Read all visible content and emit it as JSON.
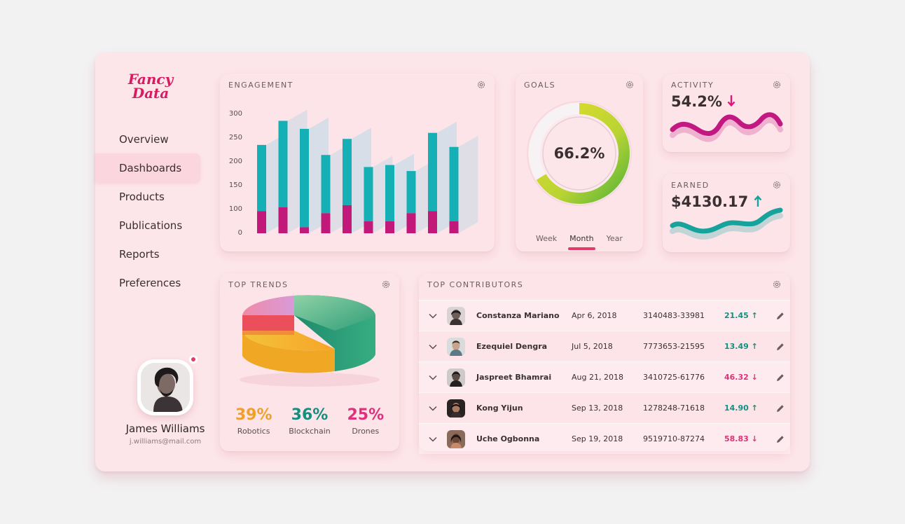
{
  "brand": {
    "line1": "Fancy",
    "line2": "Data",
    "color": "#d81b60"
  },
  "nav": {
    "items": [
      {
        "label": "Overview",
        "active": false
      },
      {
        "label": "Dashboards",
        "active": true
      },
      {
        "label": "Products",
        "active": false
      },
      {
        "label": "Publications",
        "active": false
      },
      {
        "label": "Reports",
        "active": false
      },
      {
        "label": "Preferences",
        "active": false
      }
    ]
  },
  "profile": {
    "name": "James Williams",
    "email": "j.williams@mail.com"
  },
  "engagement": {
    "title": "ENGAGEMENT",
    "chart_data": {
      "type": "bar",
      "stacked": true,
      "title": "ENGAGEMENT",
      "yticks": [
        "300",
        "250",
        "200",
        "150",
        "100",
        "0"
      ],
      "ylim": [
        0,
        300
      ],
      "series": [
        {
          "values": [
            55,
            65,
            15,
            50,
            70,
            30,
            30,
            50,
            55,
            30
          ]
        },
        {
          "values": [
            165,
            215,
            245,
            145,
            165,
            135,
            140,
            105,
            195,
            185
          ]
        }
      ],
      "colors": [
        "#c2187a",
        "#14b0b5"
      ]
    }
  },
  "goals": {
    "title": "GOALS",
    "chart_data": {
      "type": "pie",
      "value": 66.2,
      "label": "66.2%"
    },
    "tabs": [
      "Week",
      "Month",
      "Year"
    ],
    "active_tab": "Month"
  },
  "activity": {
    "title": "ACTIVITY",
    "value": "54.2%",
    "trend": "down",
    "color": "#e0187a"
  },
  "earned": {
    "title": "EARNED",
    "value": "$4130.17",
    "trend": "up",
    "color": "#15a39b"
  },
  "trends": {
    "title": "TOP TRENDS",
    "chart_data": {
      "type": "pie",
      "labels": [
        "Robotics",
        "Blockchain",
        "Drones"
      ],
      "values": [
        39,
        36,
        25
      ]
    },
    "items": [
      {
        "pct": "39%",
        "label": "Robotics",
        "color": "#f0a02a"
      },
      {
        "pct": "36%",
        "label": "Blockchain",
        "color": "#13907f"
      },
      {
        "pct": "25%",
        "label": "Drones",
        "color": "#e0307a"
      }
    ]
  },
  "contributors": {
    "title": "TOP CONTRIBUTORS",
    "rows": [
      {
        "name": "Constanza Mariano",
        "date": "Apr 6, 2018",
        "phone": "3140483-33981",
        "score": "21.45",
        "trend": "up"
      },
      {
        "name": "Ezequiel Dengra",
        "date": "Jul 5, 2018",
        "phone": "7773653-21595",
        "score": "13.49",
        "trend": "up"
      },
      {
        "name": "Jaspreet Bhamrai",
        "date": "Aug 21, 2018",
        "phone": "3410725-61776",
        "score": "46.32",
        "trend": "down"
      },
      {
        "name": "Kong Yijun",
        "date": "Sep 13, 2018",
        "phone": "1278248-71618",
        "score": "14.90",
        "trend": "up"
      },
      {
        "name": "Uche Ogbonna",
        "date": "Sep 19, 2018",
        "phone": "9519710-87274",
        "score": "58.83",
        "trend": "down"
      }
    ],
    "up_color": "#13907f",
    "down_color": "#e0307a"
  }
}
